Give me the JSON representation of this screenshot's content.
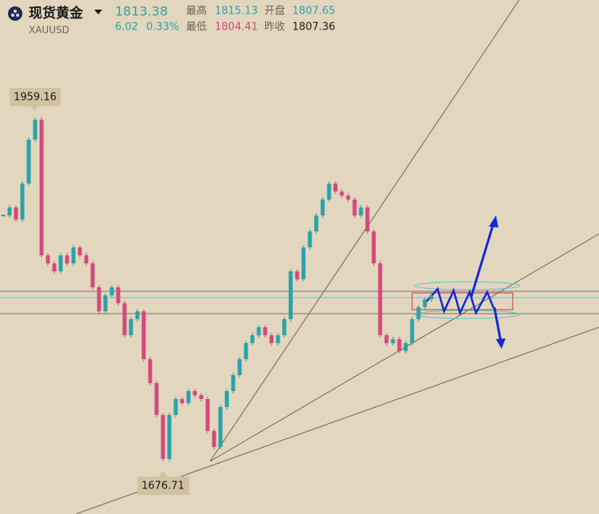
{
  "header": {
    "name": "现货黄金",
    "code": "XAUUSD",
    "price": 1813.38,
    "change": 6.02,
    "change_pct": {
      "value": 0.33,
      "label": "0.33%"
    },
    "high_label": "最高",
    "high": 1815.13,
    "open_label": "开盘",
    "open": 1807.65,
    "low_label": "最低",
    "low": 1804.41,
    "prev_close_label": "昨收",
    "prev_close": 1807.36
  },
  "chart_data": {
    "type": "candlestick",
    "up_color": "#2aa3a8",
    "down_color": "#d4497c",
    "annotations": {
      "high": 1959.16,
      "low": 1676.71
    },
    "values": [
      1878.4,
      1884.9,
      1875.1,
      1904.2,
      1939.8,
      1955.9,
      1846.1,
      1839.6,
      1833.1,
      1846.1,
      1839.6,
      1852.5,
      1846.1,
      1839.6,
      1820.2,
      1800.8,
      1813.7,
      1820.2,
      1807.3,
      1781.4,
      1794.4,
      1800.8,
      1762.0,
      1742.6,
      1716.8,
      1681.2,
      1716.8,
      1729.7,
      1726.5,
      1736.2,
      1732.9,
      1729.7,
      1703.9,
      1690.9,
      1723.2,
      1736.2,
      1749.1,
      1762.0,
      1775.0,
      1781.4,
      1787.9,
      1781.4,
      1775.0,
      1781.4,
      1794.4,
      1833.1,
      1826.7,
      1852.5,
      1865.5,
      1878.4,
      1891.3,
      1904.2,
      1897.8,
      1894.5,
      1891.3,
      1878.4,
      1884.9,
      1865.5,
      1839.6,
      1781.4,
      1775.0,
      1778.2,
      1768.5,
      1775.0,
      1794.4,
      1804.1,
      1810.5,
      1813.7
    ]
  }
}
